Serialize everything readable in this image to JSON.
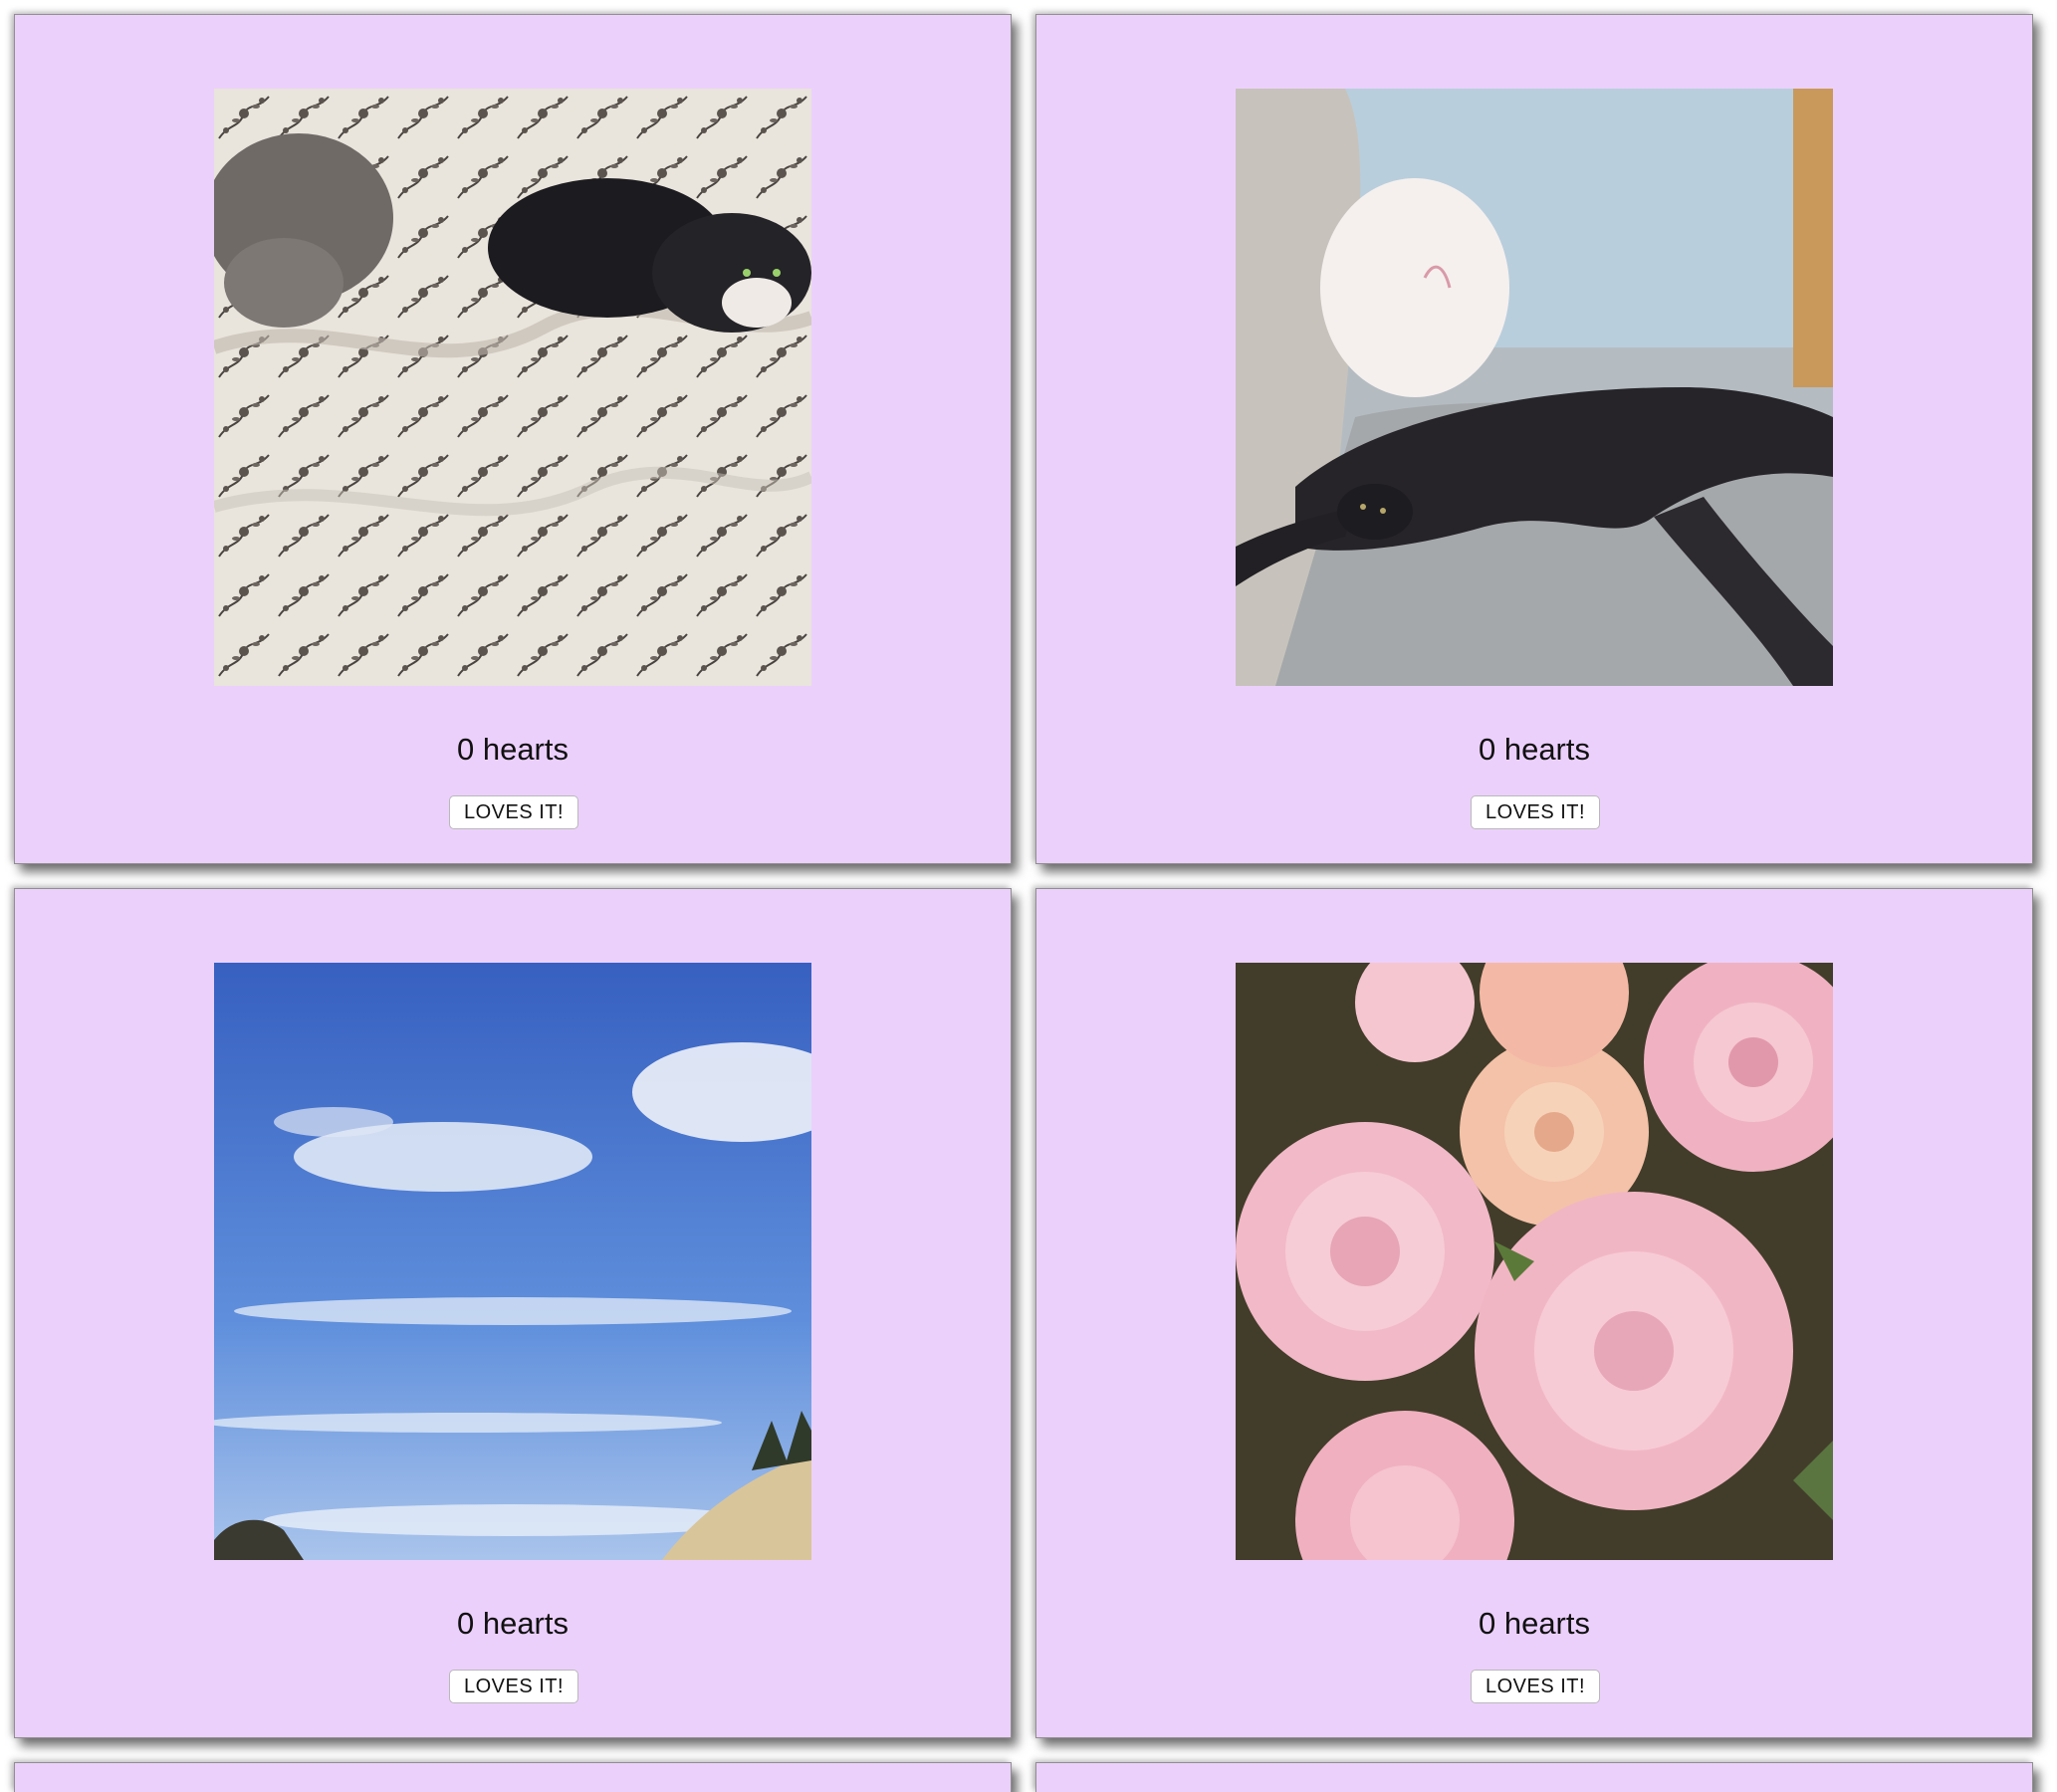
{
  "cards": [
    {
      "hearts_text": "0 hearts",
      "button_label": "LOVES IT!",
      "photo": "two cats on floral comforter"
    },
    {
      "hearts_text": "0 hearts",
      "button_label": "LOVES IT!",
      "photo": "black cat stretched on gray couch"
    },
    {
      "hearts_text": "0 hearts",
      "button_label": "LOVES IT!",
      "photo": "blue sky with clouds over sandy cliffs"
    },
    {
      "hearts_text": "0 hearts",
      "button_label": "LOVES IT!",
      "photo": "pink roses"
    }
  ],
  "colors": {
    "card_background": "#ecd0fc",
    "page_background": "#ffffff"
  }
}
